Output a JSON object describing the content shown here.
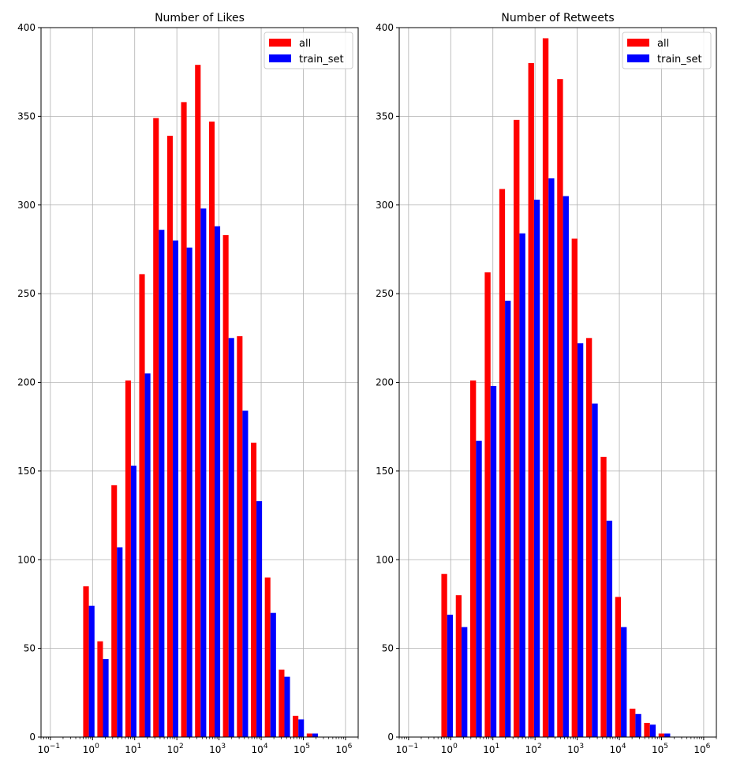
{
  "chart_data": [
    {
      "type": "bar",
      "title": "Number of Likes",
      "xlabel": "",
      "ylabel": "",
      "xscale": "log",
      "xlim": [
        0.06,
        2000000
      ],
      "ylim": [
        0,
        400
      ],
      "yticks": [
        0,
        50,
        100,
        150,
        200,
        250,
        300,
        350,
        400
      ],
      "xticks": [
        {
          "value": 0.1,
          "label_base": "10",
          "label_exp": "−1"
        },
        {
          "value": 1,
          "label_base": "10",
          "label_exp": "0"
        },
        {
          "value": 10,
          "label_base": "10",
          "label_exp": "1"
        },
        {
          "value": 100,
          "label_base": "10",
          "label_exp": "2"
        },
        {
          "value": 1000,
          "label_base": "10",
          "label_exp": "3"
        },
        {
          "value": 10000,
          "label_base": "10",
          "label_exp": "4"
        },
        {
          "value": 100000,
          "label_base": "10",
          "label_exp": "5"
        },
        {
          "value": 1000000,
          "label_base": "10",
          "label_exp": "6"
        }
      ],
      "grid": true,
      "legend_position": "top-right",
      "bin_edges": [
        0.6,
        1.3,
        2.8,
        6,
        12.8,
        27.5,
        59,
        126,
        270,
        580,
        1240,
        2660,
        5700,
        12200,
        26200,
        56200,
        120500,
        258000,
        553000,
        1186000
      ],
      "series": [
        {
          "name": "all",
          "color": "#ff0000",
          "values": [
            85,
            54,
            142,
            201,
            261,
            349,
            339,
            358,
            379,
            347,
            283,
            226,
            166,
            90,
            38,
            12,
            2,
            0,
            0
          ]
        },
        {
          "name": "train_set",
          "color": "#0000ff",
          "values": [
            74,
            44,
            107,
            153,
            205,
            286,
            280,
            276,
            298,
            288,
            225,
            184,
            133,
            70,
            34,
            10,
            2,
            0,
            0
          ]
        }
      ]
    },
    {
      "type": "bar",
      "title": "Number of Retweets",
      "xlabel": "",
      "ylabel": "",
      "xscale": "log",
      "xlim": [
        0.06,
        2000000
      ],
      "ylim": [
        0,
        400
      ],
      "yticks": [
        0,
        50,
        100,
        150,
        200,
        250,
        300,
        350,
        400
      ],
      "xticks": [
        {
          "value": 0.1,
          "label_base": "10",
          "label_exp": "−1"
        },
        {
          "value": 1,
          "label_base": "10",
          "label_exp": "0"
        },
        {
          "value": 10,
          "label_base": "10",
          "label_exp": "1"
        },
        {
          "value": 100,
          "label_base": "10",
          "label_exp": "2"
        },
        {
          "value": 1000,
          "label_base": "10",
          "label_exp": "3"
        },
        {
          "value": 10000,
          "label_base": "10",
          "label_exp": "4"
        },
        {
          "value": 100000,
          "label_base": "10",
          "label_exp": "5"
        },
        {
          "value": 1000000,
          "label_base": "10",
          "label_exp": "6"
        }
      ],
      "grid": true,
      "legend_position": "top-right",
      "bin_edges": [
        0.6,
        1.32,
        2.9,
        6.4,
        14.2,
        31,
        69,
        152,
        335,
        740,
        1630,
        3600,
        7950,
        17500,
        38600,
        85200,
        188000,
        414000
      ],
      "series": [
        {
          "name": "all",
          "color": "#ff0000",
          "values": [
            92,
            80,
            201,
            262,
            309,
            348,
            380,
            394,
            371,
            281,
            225,
            158,
            79,
            16,
            8,
            2,
            0
          ]
        },
        {
          "name": "train_set",
          "color": "#0000ff",
          "values": [
            69,
            62,
            167,
            198,
            246,
            284,
            303,
            315,
            305,
            222,
            188,
            122,
            62,
            13,
            7,
            2,
            0
          ]
        }
      ]
    }
  ]
}
